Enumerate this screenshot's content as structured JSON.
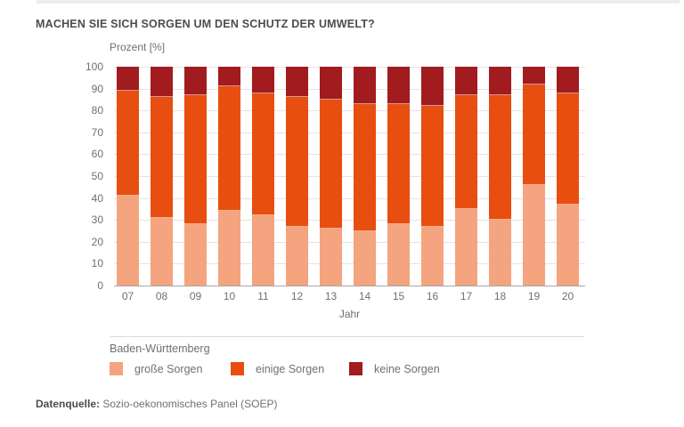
{
  "page": {
    "title": "MACHEN SIE SICH SORGEN UM DEN SCHUTZ DER UMWELT?"
  },
  "footer": {
    "label": "Datenquelle:",
    "text": "Sozio-oekonomisches Panel (SOEP)"
  },
  "chart_data": {
    "type": "bar",
    "stacked": true,
    "title": "MACHEN SIE SICH SORGEN UM DEN SCHUTZ DER UMWELT?",
    "ylabel": "Prozent [%]",
    "xlabel": "Jahr",
    "ylim": [
      0,
      100
    ],
    "ytick_step": 10,
    "grid": true,
    "legend_position": "bottom",
    "legend_title": "Baden-Württemberg",
    "categories": [
      "07",
      "08",
      "09",
      "10",
      "11",
      "12",
      "13",
      "14",
      "15",
      "16",
      "17",
      "18",
      "19",
      "20"
    ],
    "series": [
      {
        "name": "große Sorgen",
        "color": "#f4a47e",
        "values": [
          41,
          31,
          28,
          34,
          32,
          27,
          26,
          25,
          28,
          27,
          35,
          30,
          46,
          37
        ]
      },
      {
        "name": "einige Sorgen",
        "color": "#e84e0f",
        "values": [
          48,
          55,
          59,
          57,
          56,
          59,
          59,
          58,
          55,
          55,
          52,
          57,
          46,
          51
        ]
      },
      {
        "name": "keine Sorgen",
        "color": "#a11b1f",
        "values": [
          11,
          14,
          13,
          9,
          12,
          14,
          15,
          17,
          17,
          18,
          13,
          13,
          8,
          12
        ]
      }
    ],
    "colors": {
      "grid": "#e4e4e4",
      "axis_text": "#707072",
      "title_text": "#4c4c4e"
    }
  }
}
